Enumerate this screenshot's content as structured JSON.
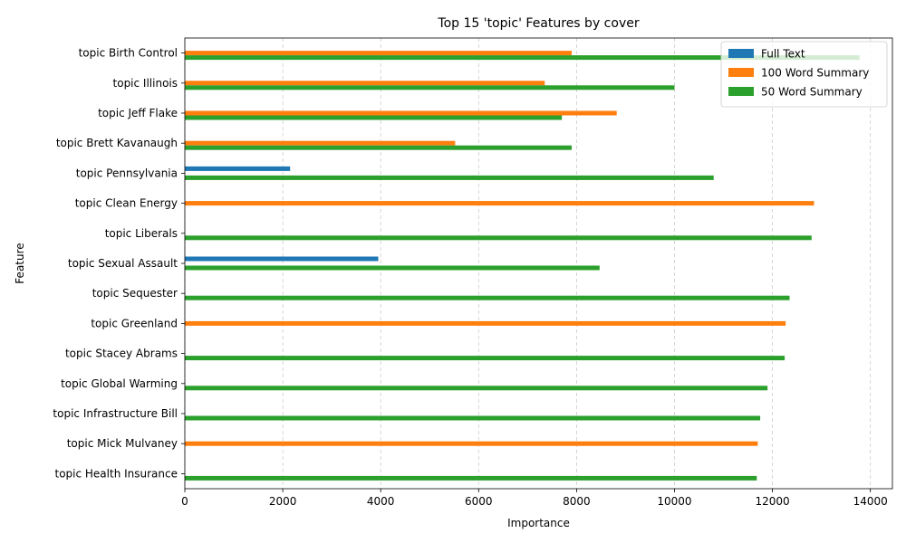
{
  "chart_data": {
    "type": "bar",
    "orientation": "horizontal",
    "title": "Top 15 'topic' Features by cover",
    "xlabel": "Importance",
    "ylabel": "Feature",
    "xlim": [
      0,
      14450
    ],
    "xticks": [
      0,
      2000,
      4000,
      6000,
      8000,
      10000,
      12000,
      14000
    ],
    "grid": "x-dashed",
    "legend_position": "top-right",
    "categories": [
      "topic Birth Control",
      "topic Illinois",
      "topic Jeff Flake",
      "topic Brett Kavanaugh",
      "topic Pennsylvania",
      "topic Clean Energy",
      "topic Liberals",
      "topic Sexual Assault",
      "topic Sequester",
      "topic Greenland",
      "topic Stacey Abrams",
      "topic Global Warming",
      "topic Infrastructure Bill",
      "topic Mick Mulvaney",
      "topic Health Insurance"
    ],
    "series": [
      {
        "name": "Full Text",
        "color": "#1f77b4",
        "values": [
          null,
          null,
          null,
          null,
          2150,
          null,
          null,
          3950,
          null,
          null,
          null,
          null,
          null,
          null,
          null
        ]
      },
      {
        "name": "100 Word Summary",
        "color": "#ff7f0e",
        "values": [
          7900,
          7350,
          8820,
          5520,
          null,
          12850,
          null,
          null,
          null,
          12270,
          null,
          null,
          null,
          11700,
          null
        ]
      },
      {
        "name": "50 Word Summary",
        "color": "#2ca02c",
        "values": [
          13780,
          10000,
          7700,
          7900,
          10800,
          null,
          12800,
          8470,
          12350,
          null,
          12250,
          11900,
          11750,
          null,
          11680
        ]
      }
    ]
  }
}
